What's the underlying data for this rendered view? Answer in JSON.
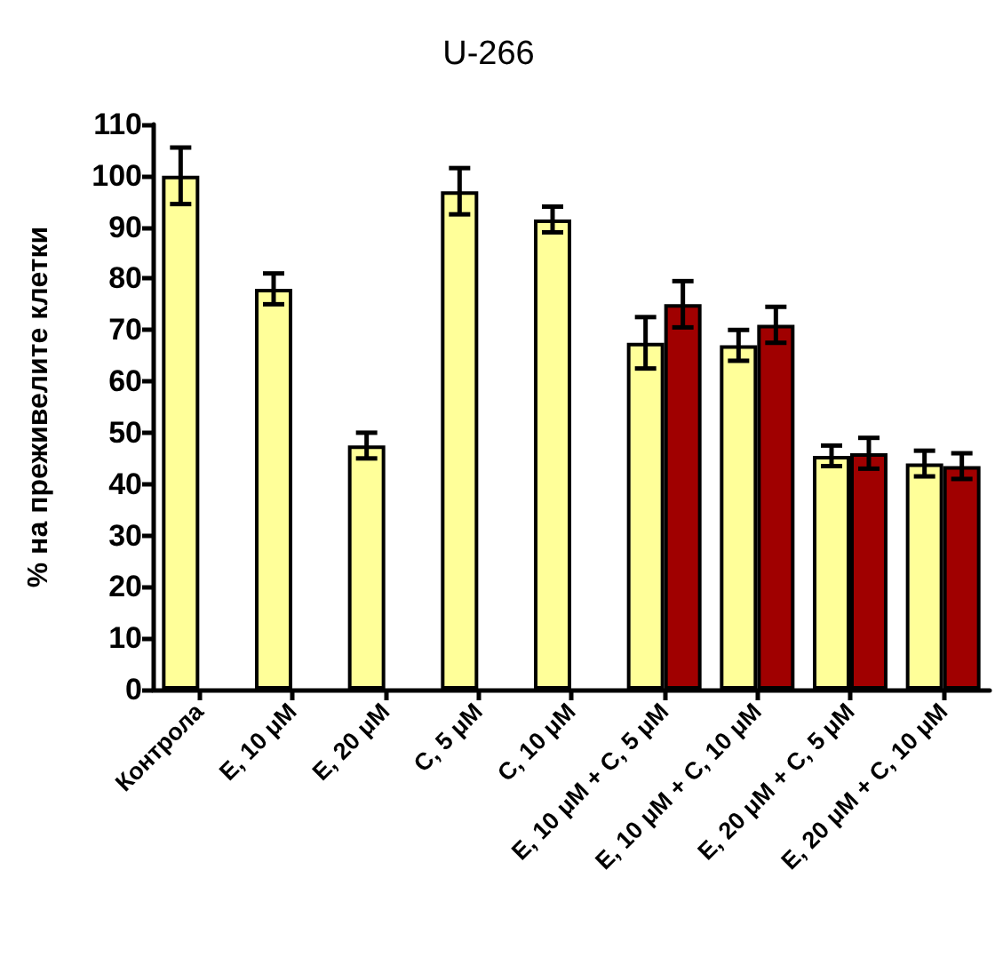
{
  "chart_data": {
    "type": "bar",
    "title": "U-266",
    "ylabel": "% на преживелите клетки",
    "categories": [
      "Контрола",
      "E, 10 μM",
      "E, 20 μM",
      "C, 5 μM",
      "C, 10 μM",
      "E, 10 μM + C, 5 μM",
      "E, 10 μM + C, 10 μM",
      "E, 20 μM + C, 5 μM",
      "E, 20 μM + C, 10 μM"
    ],
    "series": [
      {
        "color": "#ffff99",
        "values": [
          100,
          78,
          47.5,
          97,
          91.5,
          67.5,
          67,
          45.5,
          44
        ],
        "errors": [
          5.5,
          3,
          2.5,
          4.5,
          2.5,
          5,
          3,
          2,
          2.5
        ]
      },
      {
        "color": "#a00000",
        "values": [
          null,
          null,
          null,
          null,
          null,
          75,
          71,
          46,
          43.5
        ],
        "errors": [
          null,
          null,
          null,
          null,
          null,
          4.5,
          3.5,
          3,
          2.5
        ]
      }
    ],
    "ylim": [
      0,
      110
    ],
    "yticks": [
      0,
      10,
      20,
      30,
      40,
      50,
      60,
      70,
      80,
      90,
      100,
      110
    ],
    "grid": false
  }
}
